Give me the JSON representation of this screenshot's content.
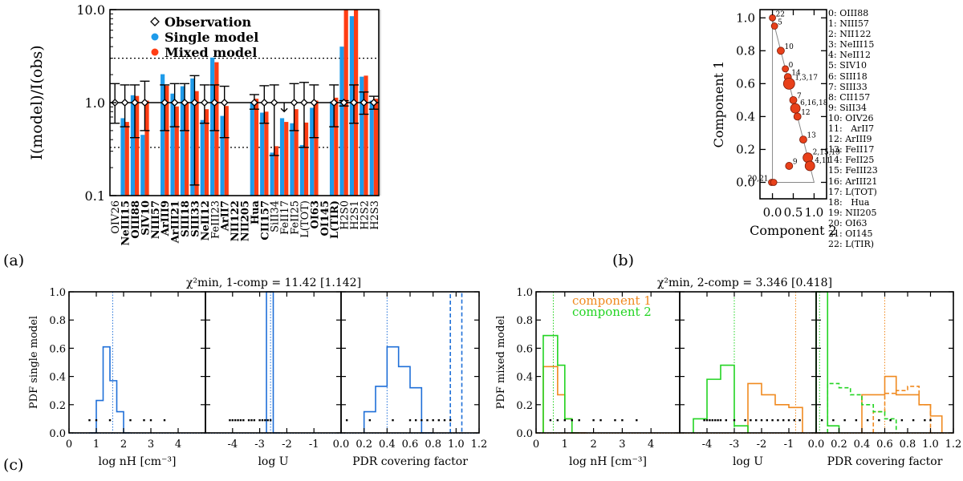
{
  "chart_data": [
    {
      "id": "a",
      "type": "bar",
      "ylabel": "I(model)/I(obs)",
      "yscale": "log",
      "ylim": [
        0.1,
        10
      ],
      "yticks": [
        "0.1",
        "1.0",
        "10.0"
      ],
      "reference_lines": [
        0.33,
        1.0,
        3.0
      ],
      "legend": [
        "Observation",
        "Single model",
        "Mixed model"
      ],
      "colors": {
        "single": "#1E9BEA",
        "mixed": "#FF3D14"
      },
      "categories": [
        {
          "label": "OIV26",
          "bold": false,
          "single": null,
          "mixed": null,
          "obs": true,
          "err": [
            0.6,
            1.6
          ]
        },
        {
          "label": "NeIII15",
          "bold": true,
          "single": 0.68,
          "mixed": 0.62,
          "obs": true,
          "err": [
            0.55,
            1.55
          ]
        },
        {
          "label": "OIII88",
          "bold": true,
          "single": 1.2,
          "mixed": 1.18,
          "obs": true,
          "err": [
            0.42,
            1.55
          ]
        },
        {
          "label": "SIV10",
          "bold": true,
          "single": 0.45,
          "mixed": 1.05,
          "obs": true,
          "err": [
            0.5,
            1.7
          ]
        },
        {
          "label": "NIII57",
          "bold": true,
          "single": null,
          "mixed": null,
          "obs": false,
          "err": null
        },
        {
          "label": "ArIII9",
          "bold": true,
          "single": 2.02,
          "mixed": 1.52,
          "obs": true,
          "err": [
            0.5,
            1.55
          ]
        },
        {
          "label": "ArIII21",
          "bold": true,
          "single": 1.25,
          "mixed": 0.91,
          "obs": true,
          "err": [
            0.55,
            1.6
          ]
        },
        {
          "label": "SIII18",
          "bold": true,
          "single": 1.5,
          "mixed": 1.02,
          "obs": true,
          "err": [
            0.5,
            1.6
          ]
        },
        {
          "label": "SIII33",
          "bold": true,
          "single": 1.82,
          "mixed": 1.33,
          "obs": true,
          "err": [
            0.13,
            1.95
          ]
        },
        {
          "label": "NeII12",
          "bold": true,
          "single": 0.65,
          "mixed": 0.85,
          "obs": true,
          "err": [
            0.6,
            1.55
          ]
        },
        {
          "label": "FeIII23",
          "bold": false,
          "single": 3.05,
          "mixed": 2.72,
          "obs": true,
          "err": [
            0.5,
            1.55
          ]
        },
        {
          "label": "ArII7",
          "bold": true,
          "single": 0.72,
          "mixed": 0.92,
          "obs": true,
          "err": [
            0.42,
            1.5
          ]
        },
        {
          "label": "NII122",
          "bold": true,
          "single": null,
          "mixed": null,
          "obs": false,
          "err": null
        },
        {
          "label": "NII205",
          "bold": true,
          "single": null,
          "mixed": null,
          "obs": false,
          "err": null
        },
        {
          "label": "Hua",
          "bold": true,
          "single": 1.02,
          "mixed": 1.1,
          "obs": true,
          "err": [
            0.85,
            1.22
          ]
        },
        {
          "label": "CII157",
          "bold": true,
          "single": 0.78,
          "mixed": 0.8,
          "obs": true,
          "err": [
            0.6,
            1.52
          ]
        },
        {
          "label": "SiII34",
          "bold": false,
          "single": 0.29,
          "mixed": 0.34,
          "obs": true,
          "err": [
            0.27,
            1.55
          ]
        },
        {
          "label": "FeII17",
          "bold": false,
          "single": 0.68,
          "mixed": 0.62,
          "obs": false,
          "err": null,
          "upper_limit": 0.8
        },
        {
          "label": "FeII25",
          "bold": false,
          "single": 0.6,
          "mixed": 0.85,
          "obs": true,
          "err": [
            0.5,
            1.6
          ]
        },
        {
          "label": "L(TOT)",
          "bold": false,
          "single": 0.35,
          "mixed": 0.61,
          "obs": true,
          "err": [
            0.33,
            1.65
          ]
        },
        {
          "label": "OI63",
          "bold": true,
          "single": 0.88,
          "mixed": 1.05,
          "obs": true,
          "err": [
            0.42,
            1.55
          ]
        },
        {
          "label": "OI145",
          "bold": true,
          "single": null,
          "mixed": null,
          "obs": false,
          "err": null
        },
        {
          "label": "L(TIR)",
          "bold": true,
          "single": 1.03,
          "mixed": 1.13,
          "obs": true,
          "err": [
            0.55,
            1.55
          ]
        },
        {
          "label": "H2S0",
          "bold": false,
          "single": 4.0,
          "mixed": 12.0,
          "obs": true,
          "err": [
            0.92,
            1.05
          ]
        },
        {
          "label": "H2S1",
          "bold": false,
          "single": 8.5,
          "mixed": 12.0,
          "obs": true,
          "err": [
            0.6,
            1.55
          ]
        },
        {
          "label": "H2S2",
          "bold": false,
          "single": 1.9,
          "mixed": 1.95,
          "obs": true,
          "err": [
            0.75,
            1.3
          ]
        },
        {
          "label": "H2S3",
          "bold": false,
          "single": 1.05,
          "mixed": 1.1,
          "obs": true,
          "err": [
            0.85,
            1.17
          ]
        }
      ]
    },
    {
      "id": "b",
      "type": "scatter",
      "xlabel": "Component 2",
      "ylabel": "Component 1",
      "xlim": [
        -0.3,
        1.3
      ],
      "ylim": [
        -0.1,
        1.05
      ],
      "xticks": [
        "0.0",
        "0.5",
        "1.0"
      ],
      "yticks": [
        "0.0",
        "0.2",
        "0.4",
        "0.6",
        "0.8",
        "1.0"
      ],
      "points": [
        {
          "x": 0.0,
          "y": 1.0,
          "r": 4,
          "label": "22"
        },
        {
          "x": 0.05,
          "y": 0.95,
          "r": 4,
          "label": "5"
        },
        {
          "x": 0.2,
          "y": 0.8,
          "r": 4.5,
          "label": "10"
        },
        {
          "x": 0.31,
          "y": 0.69,
          "r": 4,
          "label": "0"
        },
        {
          "x": 0.37,
          "y": 0.64,
          "r": 4.5,
          "label": "14"
        },
        {
          "x": 0.4,
          "y": 0.6,
          "r": 7,
          "label": "1,3,17"
        },
        {
          "x": 0.5,
          "y": 0.5,
          "r": 4.5,
          "label": "7"
        },
        {
          "x": 0.55,
          "y": 0.45,
          "r": 6,
          "label": "6,16,18"
        },
        {
          "x": 0.6,
          "y": 0.4,
          "r": 4.5,
          "label": "12"
        },
        {
          "x": 0.74,
          "y": 0.26,
          "r": 4.5,
          "label": "13"
        },
        {
          "x": 0.85,
          "y": 0.15,
          "r": 6,
          "label": "2,15,19"
        },
        {
          "x": 0.9,
          "y": 0.1,
          "r": 6,
          "label": "4,11"
        },
        {
          "x": 0.4,
          "y": 0.1,
          "r": 4.5,
          "label": "9"
        },
        {
          "x": -0.02,
          "y": 0.0,
          "r": 4,
          "label": "20,21"
        },
        {
          "x": 0.03,
          "y": 0.0,
          "r": 4,
          "label": ""
        }
      ],
      "legend": [
        "0: OIII88",
        "1: NIII57",
        "2: NII122",
        "3: NeIII15",
        "4: NeII12",
        "5: SIV10",
        "6: SIII18",
        "7: SIII33",
        "8: CII157",
        "9: SiII34",
        "10: OIV26",
        "11:   ArII7",
        "12: ArIII9",
        "13: FeII17",
        "14: FeII25",
        "15: FeIII23",
        "16: ArIII21",
        "17: L(TOT)",
        "18:   Hua",
        "19: NII205",
        "20: OI63",
        "21: OI145",
        "22: L(TIR)"
      ]
    },
    {
      "id": "c-left",
      "type": "step-histogram",
      "title": "χ²min, 1-comp = 11.42 [1.142]",
      "ylabel": "PDF single model",
      "ylim": [
        0,
        1.0
      ],
      "yticks": [
        "0.0",
        "0.2",
        "0.4",
        "0.6",
        "0.8",
        "1.0"
      ],
      "panels": [
        {
          "xlabel": "log nH [cm⁻³]",
          "xlim": [
            0,
            5
          ],
          "xticks": [
            "0",
            "1",
            "2",
            "3",
            "4"
          ],
          "series": [
            {
              "name": "single",
              "color": "#1F6FD8",
              "dash": false,
              "edges": [
                0.75,
                1.0,
                1.25,
                1.5,
                1.75,
                2.0,
                2.25
              ],
              "values": [
                0.0,
                0.23,
                0.61,
                0.37,
                0.15,
                0.0
              ]
            }
          ],
          "vline": 1.6,
          "dots": [
            0.75,
            1.0,
            1.5,
            2.25,
            2.75,
            3.0,
            3.5
          ]
        },
        {
          "xlabel": "log U",
          "xlim": [
            -5,
            0
          ],
          "xticks": [
            "-4",
            "-3",
            "-2",
            "-1"
          ],
          "series": [
            {
              "name": "single",
              "color": "#1F6FD8",
              "dash": false,
              "edges": [
                -2.75,
                -2.5,
                -2.25
              ],
              "values": [
                1.0,
                0.0
              ]
            }
          ],
          "vline": -2.6,
          "dots": [
            -4.1,
            -4.0,
            -3.9,
            -3.8,
            -3.7,
            -3.6,
            -3.4,
            -3.3,
            -3.2,
            -3.0,
            -2.9,
            -2.8,
            -2.7,
            -2.6
          ]
        },
        {
          "xlabel": "PDR covering factor",
          "xlim": [
            0,
            1.2
          ],
          "xticks": [
            "0.0",
            "0.2",
            "0.4",
            "0.6",
            "0.8",
            "1.0",
            "1.2"
          ],
          "series": [
            {
              "name": "single",
              "color": "#1F6FD8",
              "dash": false,
              "edges": [
                0.2,
                0.3,
                0.4,
                0.5,
                0.6,
                0.7,
                0.8
              ],
              "values": [
                0.15,
                0.33,
                0.61,
                0.47,
                0.32,
                0.0
              ]
            },
            {
              "name": "single-dashed",
              "color": "#1F6FD8",
              "dash": true,
              "edges": [
                0.95,
                1.05
              ],
              "values": [
                1.0
              ]
            }
          ],
          "vline": 0.4,
          "dots": [
            0.05,
            0.25,
            0.45,
            0.6,
            0.65,
            0.7,
            0.75,
            0.8,
            0.85,
            0.9,
            0.95
          ]
        }
      ]
    },
    {
      "id": "c-right",
      "type": "step-histogram",
      "title": "χ²min, 2-comp = 3.346 [0.418]",
      "ylabel": "PDF mixed model",
      "ylim": [
        0,
        1.0
      ],
      "yticks": [
        "0.0",
        "0.2",
        "0.4",
        "0.6",
        "0.8",
        "1.0"
      ],
      "legend": [
        {
          "name": "component 1",
          "color": "#F08A20"
        },
        {
          "name": "component 2",
          "color": "#22D422"
        }
      ],
      "panels": [
        {
          "xlabel": "log nH [cm⁻³]",
          "xlim": [
            0,
            5
          ],
          "xticks": [
            "0",
            "1",
            "2",
            "3",
            "4"
          ],
          "series": [
            {
              "name": "component 1",
              "color": "#F08A20",
              "dash": false,
              "edges": [
                0.25,
                0.75,
                1.0,
                1.25,
                1.5,
                1.75
              ],
              "values": [
                0.47,
                0.27,
                0.1,
                0.0,
                0.0
              ]
            },
            {
              "name": "component 2",
              "color": "#22D422",
              "dash": false,
              "edges": [
                0.25,
                0.75,
                1.0,
                1.25,
                1.5
              ],
              "values": [
                0.69,
                0.48,
                0.1,
                0.0
              ]
            }
          ],
          "vline1": 0.6,
          "vline2": 0.6,
          "dots": [
            0.5,
            0.75,
            1.0,
            1.25,
            1.5,
            2.0,
            2.25,
            2.75,
            3.0,
            3.5
          ]
        },
        {
          "xlabel": "log U",
          "xlim": [
            -5,
            0
          ],
          "xticks": [
            "-4",
            "-3",
            "-2",
            "-1"
          ],
          "series": [
            {
              "name": "component 1",
              "color": "#F08A20",
              "dash": false,
              "edges": [
                -2.5,
                -2.0,
                -1.5,
                -1.0,
                -0.5
              ],
              "values": [
                0.35,
                0.27,
                0.2,
                0.18
              ]
            },
            {
              "name": "component 2",
              "color": "#22D422",
              "dash": false,
              "edges": [
                -4.5,
                -4.0,
                -3.5,
                -3.0,
                -2.5
              ],
              "values": [
                0.1,
                0.38,
                0.48,
                0.05
              ]
            }
          ],
          "vline1": -0.75,
          "vline2": -3.0,
          "dots": [
            -4.1,
            -4.0,
            -3.9,
            -3.8,
            -3.7,
            -3.6,
            -3.5,
            -3.3,
            -3.0,
            -2.6,
            -2.4,
            -2.2,
            -2.0,
            -1.8,
            -1.6,
            -1.4,
            -1.2,
            -1.0,
            -0.8,
            -0.6
          ]
        },
        {
          "xlabel": "PDR covering factor",
          "xlim": [
            0,
            1.2
          ],
          "xticks": [
            "0.0",
            "0.2",
            "0.4",
            "0.6",
            "0.8",
            "1.0",
            "1.2"
          ],
          "series": [
            {
              "name": "component 1",
              "color": "#F08A20",
              "dash": false,
              "edges": [
                0.4,
                0.5,
                0.6,
                0.7,
                0.8,
                0.9,
                1.0,
                1.1
              ],
              "values": [
                0.27,
                0.27,
                0.4,
                0.27,
                0.27,
                0.2,
                0.12
              ]
            },
            {
              "name": "component 2",
              "color": "#22D422",
              "dash": false,
              "edges": [
                0.0,
                0.1,
                0.2
              ],
              "values": [
                1.0,
                0.05
              ]
            },
            {
              "name": "component 1 dashed",
              "color": "#F08A20",
              "dash": true,
              "edges": [
                0.5,
                0.6,
                0.7,
                0.8,
                0.9,
                1.0
              ],
              "values": [
                0.15,
                0.28,
                0.3,
                0.33,
                0.2
              ]
            },
            {
              "name": "component 2 dashed",
              "color": "#22D422",
              "dash": true,
              "edges": [
                0.1,
                0.2,
                0.3,
                0.4,
                0.5,
                0.6,
                0.7
              ],
              "values": [
                0.35,
                0.32,
                0.27,
                0.2,
                0.15,
                0.1
              ]
            }
          ],
          "vline1": 0.6,
          "vline2": 0.03,
          "dots": [
            0.05,
            0.15,
            0.25,
            0.35,
            0.45,
            0.55,
            0.65,
            0.75,
            0.85,
            0.95,
            1.0
          ]
        }
      ]
    }
  ],
  "panel_labels": {
    "a": "(a)",
    "b": "(b)",
    "c": "(c)"
  }
}
